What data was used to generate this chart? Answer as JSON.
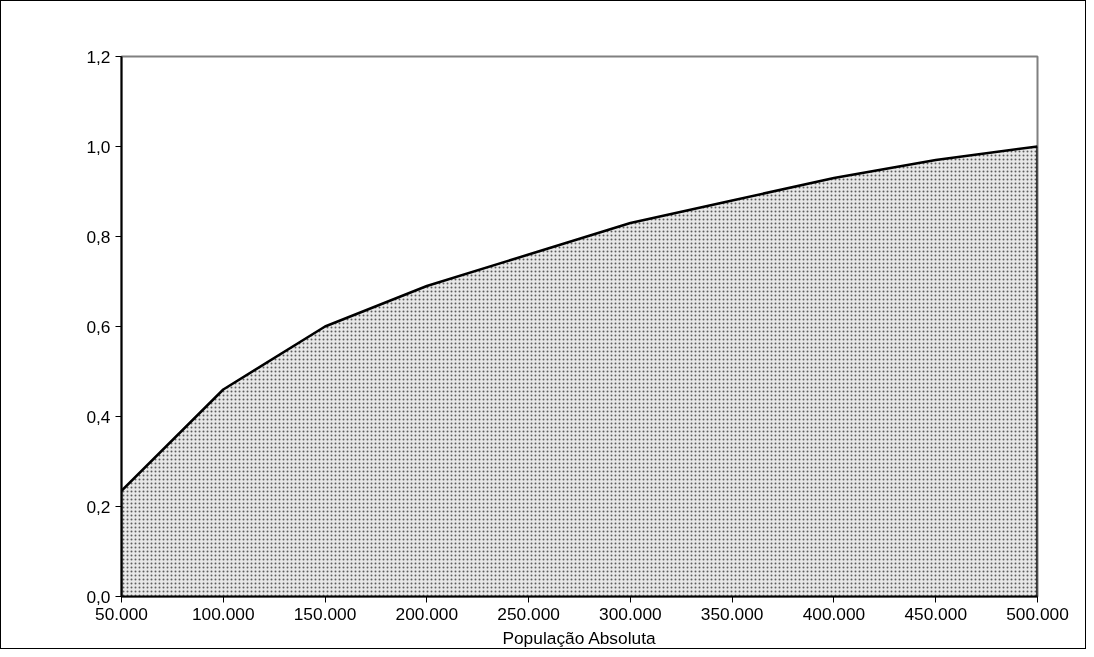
{
  "chart_data": {
    "type": "area",
    "xlabel": "População Absoluta",
    "x": [
      50000,
      100000,
      150000,
      200000,
      250000,
      300000,
      350000,
      400000,
      450000,
      500000
    ],
    "series": [
      {
        "color": "#000000",
        "values": [
          0.235,
          0.46,
          0.6,
          0.69,
          0.76,
          0.83,
          0.88,
          0.93,
          0.97,
          1.0
        ]
      }
    ],
    "xlim": [
      50000,
      500000
    ],
    "xticks": [
      {
        "value": 50000,
        "label": "50.000"
      },
      {
        "value": 100000,
        "label": "100.000"
      },
      {
        "value": 150000,
        "label": "150.000"
      },
      {
        "value": 200000,
        "label": "200.000"
      },
      {
        "value": 250000,
        "label": "250.000"
      },
      {
        "value": 300000,
        "label": "300.000"
      },
      {
        "value": 350000,
        "label": "350.000"
      },
      {
        "value": 400000,
        "label": "400.000"
      },
      {
        "value": 450000,
        "label": "450.000"
      },
      {
        "value": 500000,
        "label": "500.000"
      }
    ],
    "ylim": [
      0,
      1.2
    ],
    "yticks": [
      {
        "value": 0,
        "label": "0,0"
      },
      {
        "value": 0.2,
        "label": "0,2"
      },
      {
        "value": 0.4,
        "label": "0,4"
      },
      {
        "value": 0.6,
        "label": "0,6"
      },
      {
        "value": 0.8,
        "label": "0,8"
      },
      {
        "value": 1.0,
        "label": "1,0"
      },
      {
        "value": 1.2,
        "label": "1,2"
      }
    ],
    "grid": false
  }
}
